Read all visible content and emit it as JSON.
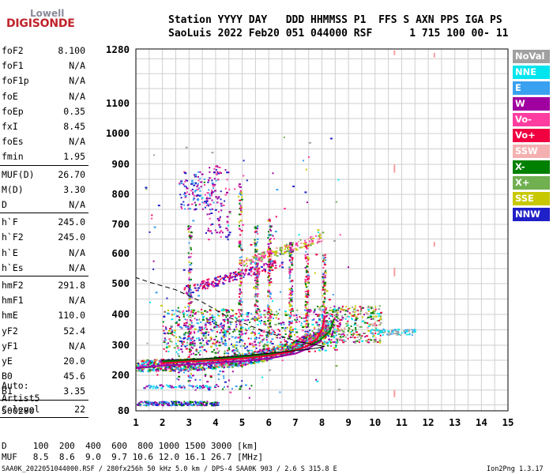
{
  "logo": {
    "line1": "Lowell",
    "line2": "DIGISONDE"
  },
  "header": {
    "line1": "Station YYYY DAY   DDD HHMMSS P1  FFS S AXN PPS IGA PS",
    "line2": "SaoLuis 2022 Feb20 051 044000 RSF      1 715 100 00- 11"
  },
  "params": [
    {
      "label": "foF2",
      "value": "8.100",
      "sep_after": false
    },
    {
      "label": "foF1",
      "value": "N/A",
      "sep_after": false
    },
    {
      "label": "foF1p",
      "value": "N/A",
      "sep_after": false
    },
    {
      "label": "foE",
      "value": "N/A",
      "sep_after": false
    },
    {
      "label": "foEp",
      "value": "0.35",
      "sep_after": false
    },
    {
      "label": "fxI",
      "value": "8.45",
      "sep_after": false
    },
    {
      "label": "foEs",
      "value": "N/A",
      "sep_after": false
    },
    {
      "label": "fmin",
      "value": "1.95",
      "sep_after": true
    },
    {
      "label": "MUF(D)",
      "value": "26.70",
      "sep_after": false
    },
    {
      "label": "M(D)",
      "value": "3.30",
      "sep_after": false
    },
    {
      "label": "D",
      "value": "N/A",
      "sep_after": true
    },
    {
      "label": "h`F",
      "value": "245.0",
      "sep_after": false
    },
    {
      "label": "h`F2",
      "value": "245.0",
      "sep_after": false
    },
    {
      "label": "h`E",
      "value": "N/A",
      "sep_after": false
    },
    {
      "label": "h`Es",
      "value": "N/A",
      "sep_after": true
    },
    {
      "label": "hmF2",
      "value": "291.8",
      "sep_after": false
    },
    {
      "label": "hmF1",
      "value": "N/A",
      "sep_after": false
    },
    {
      "label": "hmE",
      "value": "110.0",
      "sep_after": false
    },
    {
      "label": "yF2",
      "value": "52.4",
      "sep_after": false
    },
    {
      "label": "yF1",
      "value": "N/A",
      "sep_after": false
    },
    {
      "label": "yE",
      "value": "20.0",
      "sep_after": false
    },
    {
      "label": "B0",
      "value": "45.6",
      "sep_after": false
    },
    {
      "label": "B1",
      "value": "3.35",
      "sep_after": true
    },
    {
      "label": "C-level",
      "value": "22",
      "sep_after": true
    }
  ],
  "auto": {
    "line1": "Auto:",
    "line2": "Artist5",
    "line3": "500200"
  },
  "legend": [
    {
      "label": "NoVal",
      "color": "#a0a0a0"
    },
    {
      "label": "NNE",
      "color": "#00e5ee"
    },
    {
      "label": "E",
      "color": "#3aa0f0"
    },
    {
      "label": "W",
      "color": "#a000a0"
    },
    {
      "label": "Vo-",
      "color": "#ff3ca0"
    },
    {
      "label": "Vo+",
      "color": "#f00040"
    },
    {
      "label": "SSW",
      "color": "#f4b0b0"
    },
    {
      "label": "X-",
      "color": "#008000"
    },
    {
      "label": "X+",
      "color": "#70b050"
    },
    {
      "label": "SSE",
      "color": "#c8c800"
    },
    {
      "label": "NNW",
      "color": "#2020c8"
    }
  ],
  "muf_table": {
    "line1": "D     100  200  400  600  800 1000 1500 3000 [km]",
    "line2": "MUF   8.5  8.6  9.0  9.7 10.6 12.0 16.1 26.7 [MHz]"
  },
  "footer": {
    "left": "SAA0K_2022051044000.RSF / 280fx256h 50 kHz 5.0 km / DPS-4 SAA0K 903 / 2.6 S 315.8 E",
    "right": "Ion2Png 1.3.17"
  },
  "chart_data": {
    "type": "scatter",
    "x_ticks": [
      "1",
      "2",
      "3",
      "4",
      "5",
      "6",
      "7",
      "8",
      "9",
      "10",
      "11",
      "12",
      "13",
      "14",
      "15"
    ],
    "y_ticks": [
      "80",
      "200",
      "300",
      "400",
      "500",
      "600",
      "700",
      "800",
      "900",
      "1000",
      "1100",
      "1280"
    ],
    "xlim": [
      1,
      15
    ],
    "ylim_labels": [
      "80",
      "1280"
    ],
    "grid": true,
    "traces": [
      {
        "name": "X-",
        "color": "#008000",
        "points": [
          [
            2.0,
            245
          ],
          [
            3.0,
            250
          ],
          [
            4.0,
            255
          ],
          [
            5.0,
            262
          ],
          [
            6.0,
            270
          ],
          [
            6.8,
            280
          ],
          [
            7.4,
            295
          ],
          [
            7.9,
            315
          ],
          [
            8.3,
            345
          ],
          [
            8.45,
            385
          ]
        ]
      },
      {
        "name": "Vo+",
        "color": "#f00040",
        "points": [
          [
            1.95,
            240
          ],
          [
            2.5,
            243
          ],
          [
            3.0,
            246
          ],
          [
            4.0,
            250
          ],
          [
            5.0,
            256
          ],
          [
            6.0,
            265
          ],
          [
            6.8,
            278
          ],
          [
            7.4,
            295
          ],
          [
            7.8,
            320
          ],
          [
            8.0,
            350
          ],
          [
            8.1,
            390
          ]
        ]
      },
      {
        "name": "W",
        "color": "#a000a0",
        "points": [
          [
            1.0,
            225
          ],
          [
            1.5,
            228
          ],
          [
            2.0,
            232
          ],
          [
            3.0,
            236
          ],
          [
            4.0,
            242
          ],
          [
            5.0,
            247
          ],
          [
            6.0,
            256
          ],
          [
            7.0,
            272
          ],
          [
            7.5,
            290
          ],
          [
            8.0,
            315
          ]
        ]
      }
    ],
    "profile_curve": {
      "color": "#000000",
      "points": [
        [
          1.95,
          250
        ],
        [
          3.0,
          253
        ],
        [
          4.0,
          258
        ],
        [
          5.0,
          265
        ],
        [
          6.0,
          273
        ],
        [
          7.0,
          282
        ],
        [
          7.8,
          290
        ],
        [
          8.1,
          296
        ],
        [
          7.2,
          310
        ],
        [
          6.0,
          340
        ],
        [
          4.5,
          390
        ],
        [
          3.5,
          440
        ],
        [
          2.5,
          480
        ],
        [
          1.5,
          505
        ],
        [
          1.0,
          520
        ]
      ]
    }
  }
}
